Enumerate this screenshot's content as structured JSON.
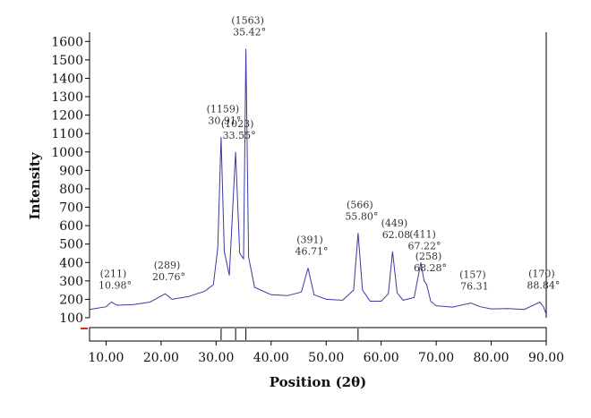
{
  "chart_data": {
    "type": "line",
    "xlabel": "Position (2θ)",
    "ylabel": "Intensity",
    "xlim": [
      7,
      90
    ],
    "ylim": [
      100,
      1650
    ],
    "x_ticks": [
      "10.00",
      "20.00",
      "30.00",
      "40.00",
      "50.00",
      "60.00",
      "70.00",
      "80.00",
      "90.00"
    ],
    "y_ticks": [
      "100",
      "200",
      "300",
      "400",
      "500",
      "600",
      "700",
      "800",
      "900",
      "1000",
      "1100",
      "1200",
      "1300",
      "1400",
      "1500",
      "1600"
    ],
    "grid": false,
    "line_color": "#3a3aa0",
    "series": [
      {
        "x": [
          7,
          10,
          10.98,
          12,
          15,
          18,
          20.76,
          22,
          25,
          28,
          29.5,
          30.3,
          30.91,
          31.5,
          32.4,
          33.55,
          34.3,
          35.0,
          35.42,
          35.9,
          37,
          40,
          43,
          45.5,
          46.71,
          47.8,
          50,
          53,
          55.0,
          55.8,
          56.6,
          58,
          60,
          61.3,
          62.08,
          62.9,
          64,
          66,
          67.22,
          67.8,
          68.28,
          69.0,
          70,
          73,
          76.31,
          78,
          80,
          83,
          86,
          88.84,
          89.5,
          90
        ],
        "y": [
          145,
          160,
          185,
          168,
          172,
          185,
          230,
          200,
          215,
          245,
          280,
          480,
          1080,
          460,
          330,
          1000,
          450,
          420,
          1560,
          430,
          265,
          225,
          220,
          240,
          370,
          225,
          200,
          195,
          250,
          560,
          250,
          190,
          190,
          230,
          460,
          235,
          195,
          210,
          400,
          300,
          280,
          190,
          165,
          158,
          180,
          160,
          148,
          150,
          145,
          185,
          160,
          120
        ]
      }
    ],
    "annotations": [
      {
        "x": 10.98,
        "y": 185,
        "line1": "(211)",
        "line2": "10.98°"
      },
      {
        "x": 20.76,
        "y": 230,
        "line1": "(289)",
        "line2": "20.76°"
      },
      {
        "x": 30.91,
        "y": 1080,
        "line1": "(1159)",
        "line2": "30.91°"
      },
      {
        "x": 33.55,
        "y": 1000,
        "line1": "(1023)",
        "line2": "33.55°"
      },
      {
        "x": 35.42,
        "y": 1560,
        "line1": "(1563)",
        "line2": "35.42°"
      },
      {
        "x": 46.71,
        "y": 370,
        "line1": "(391)",
        "line2": "46.71°"
      },
      {
        "x": 55.8,
        "y": 560,
        "line1": "(566)",
        "line2": "55.80°"
      },
      {
        "x": 62.08,
        "y": 460,
        "line1": "(449)",
        "line2": "62.08"
      },
      {
        "x": 67.22,
        "y": 400,
        "line1": "(411)",
        "line2": "67.22°"
      },
      {
        "x": 68.28,
        "y": 280,
        "line1": "(258)",
        "line2": "68.28°"
      },
      {
        "x": 76.31,
        "y": 180,
        "line1": "(157)",
        "line2": "76.31"
      },
      {
        "x": 88.84,
        "y": 185,
        "line1": "(170)",
        "line2": "88.84°"
      }
    ],
    "reference_marks": [
      30.91,
      33.55,
      35.42,
      55.8
    ]
  }
}
